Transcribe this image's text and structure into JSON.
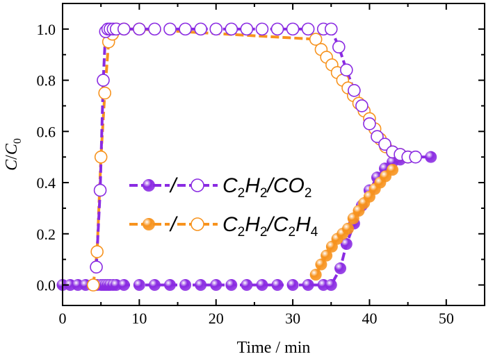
{
  "chart_data": {
    "type": "scatter",
    "xlabel": "Time / min",
    "ylabel_main": "C",
    "ylabel_sep": "/",
    "ylabel_main2": "C",
    "ylabel_sub": "0",
    "xlim": [
      0,
      55
    ],
    "ylim": [
      -0.08,
      1.1
    ],
    "xticks": [
      0,
      10,
      20,
      30,
      40,
      50
    ],
    "xtick_labels": [
      "0",
      "10",
      "20",
      "30",
      "40",
      "50"
    ],
    "yticks": [
      0.0,
      0.2,
      0.4,
      0.6,
      0.8,
      1.0
    ],
    "ytick_labels": [
      "0.0",
      "0.2",
      "0.4",
      "0.6",
      "0.8",
      "1.0"
    ],
    "legend_position": "center-left",
    "legend": [
      {
        "sep": "/",
        "parts": [
          "C",
          "2",
          "H",
          "2",
          "/CO",
          "2"
        ],
        "color": "#8a2be2"
      },
      {
        "sep": "/",
        "parts": [
          "C",
          "2",
          "H",
          "2",
          "/C",
          "2",
          "H",
          "4"
        ],
        "color": "#f7931e"
      }
    ],
    "series": [
      {
        "key": "ch_co2_filled",
        "color": "#8a2be2",
        "style": "filled",
        "x": [
          0,
          1,
          2,
          3,
          4,
          4.5,
          5,
          5.3,
          5.6,
          5.9,
          6.2,
          6.6,
          7,
          8,
          10,
          12,
          14,
          16,
          18,
          20,
          22,
          24,
          26,
          28,
          30,
          32,
          34,
          35,
          36.2,
          37,
          38,
          39,
          40,
          41,
          42,
          43,
          44,
          45,
          46,
          48
        ],
        "y": [
          0,
          0,
          0,
          0,
          0,
          0,
          0,
          0,
          0,
          0,
          0,
          0,
          0,
          0,
          0,
          0,
          0,
          0,
          0,
          0,
          0,
          0,
          0,
          0,
          0,
          0,
          0,
          0,
          0.065,
          0.16,
          0.24,
          0.31,
          0.37,
          0.42,
          0.455,
          0.48,
          0.49,
          0.5,
          0.5,
          0.5
        ]
      },
      {
        "key": "ch_c2h4_filled",
        "color": "#f7931e",
        "style": "filled",
        "x": [
          33,
          33.7,
          34.4,
          35.1,
          35.8,
          36.5,
          37.2,
          37.9,
          38.6,
          39.3,
          40,
          40.7,
          41.4,
          42.1,
          43
        ],
        "y": [
          0.04,
          0.08,
          0.115,
          0.15,
          0.18,
          0.2,
          0.22,
          0.26,
          0.29,
          0.32,
          0.345,
          0.375,
          0.4,
          0.425,
          0.45
        ]
      },
      {
        "key": "ch_c2h4_open",
        "color": "#f7931e",
        "style": "open",
        "x": [
          4,
          4.5,
          5,
          5.5,
          6,
          6.5,
          7,
          8,
          10,
          33,
          33.7,
          34.4,
          35.1,
          35.8,
          36.5,
          37.2,
          37.9,
          38.6,
          39.3,
          40,
          40.7,
          41.4,
          42.1,
          43,
          44,
          45
        ],
        "y": [
          0,
          0.13,
          0.5,
          0.75,
          0.95,
          0.98,
          1.0,
          1.0,
          1.0,
          0.96,
          0.92,
          0.89,
          0.86,
          0.83,
          0.8,
          0.77,
          0.74,
          0.71,
          0.68,
          0.65,
          0.61,
          0.57,
          0.54,
          0.52,
          0.51,
          0.5
        ]
      },
      {
        "key": "ch_co2_open",
        "color": "#8a2be2",
        "style": "open",
        "x": [
          4.4,
          4.9,
          5.3,
          5.6,
          5.9,
          6.2,
          6.6,
          7,
          8,
          10,
          12,
          14,
          16,
          18,
          20,
          22,
          24,
          26,
          28,
          30,
          32,
          34,
          35,
          36,
          37,
          38,
          39,
          40,
          41,
          42,
          43,
          44,
          45,
          46
        ],
        "y": [
          0.07,
          0.37,
          0.8,
          0.99,
          1.0,
          1.0,
          1.0,
          1.0,
          1.0,
          1.0,
          1.0,
          1.0,
          1.0,
          1.0,
          1.0,
          1.0,
          1.0,
          1.0,
          1.0,
          1.0,
          1.0,
          1.0,
          1.0,
          0.93,
          0.84,
          0.76,
          0.7,
          0.63,
          0.58,
          0.55,
          0.52,
          0.51,
          0.5,
          0.5
        ]
      }
    ]
  }
}
